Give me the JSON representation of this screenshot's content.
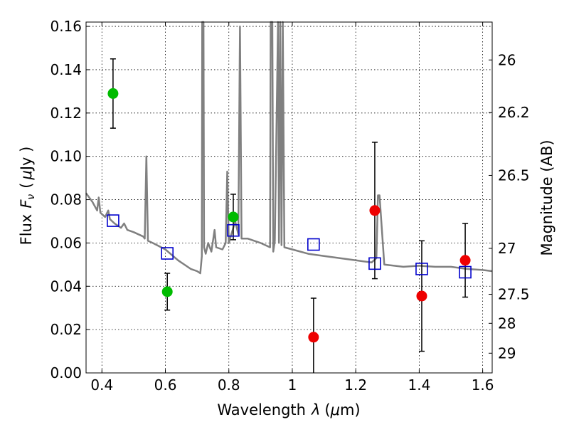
{
  "chart_data": {
    "type": "scatter",
    "xlabel_main": "Wavelength",
    "xlabel_symbol": "λ",
    "xlabel_unit_open": "(",
    "xlabel_unit_mu": "μ",
    "xlabel_unit_rest": "m)",
    "ylabel_main": "Flux",
    "ylabel_symbol": "F",
    "ylabel_sub": "ν",
    "ylabel_unit_open": "(",
    "ylabel_unit_mu": "μ",
    "ylabel_unit_rest": "Jy )",
    "y2label": "Magnitude (AB)",
    "xlim": [
      0.35,
      1.63
    ],
    "ylim": [
      0.0,
      0.162
    ],
    "xticks": [
      0.4,
      0.6,
      0.8,
      1.0,
      1.2,
      1.4,
      1.6
    ],
    "xtick_labels": [
      "0.4",
      "0.6",
      "0.8",
      "1",
      "1.2",
      "1.4",
      "1.6"
    ],
    "yticks": [
      0.0,
      0.02,
      0.04,
      0.06,
      0.08,
      0.1,
      0.12,
      0.14,
      0.16
    ],
    "ytick_labels": [
      "0.00",
      "0.02",
      "0.04",
      "0.06",
      "0.08",
      "0.10",
      "0.12",
      "0.14",
      "0.16"
    ],
    "y2ticks": [
      {
        "label": "26",
        "flux": 0.1445
      },
      {
        "label": "26.2",
        "flux": 0.1202
      },
      {
        "label": "26.5",
        "flux": 0.0912
      },
      {
        "label": "27",
        "flux": 0.0575
      },
      {
        "label": "27.5",
        "flux": 0.0363
      },
      {
        "label": "28",
        "flux": 0.0229
      },
      {
        "label": "29",
        "flux": 0.0091
      }
    ],
    "grid": true,
    "colors": {
      "green": "#00bb00",
      "red": "#ee0000",
      "blue": "#0000cc",
      "sed": "#808080"
    },
    "series": [
      {
        "name": "green-detections",
        "marker": "filled-circle",
        "color": "#00bb00",
        "points": [
          {
            "x": 0.435,
            "y": 0.129,
            "err": 0.016
          },
          {
            "x": 0.606,
            "y": 0.0375,
            "err": 0.0085
          },
          {
            "x": 0.814,
            "y": 0.072,
            "err": 0.0105
          }
        ]
      },
      {
        "name": "red-detections",
        "marker": "filled-circle",
        "color": "#ee0000",
        "points": [
          {
            "x": 1.067,
            "y": 0.0165,
            "err": 0.018
          },
          {
            "x": 1.26,
            "y": 0.075,
            "err": 0.0315
          },
          {
            "x": 1.408,
            "y": 0.0355,
            "err": 0.0255
          },
          {
            "x": 1.545,
            "y": 0.052,
            "err": 0.017
          }
        ]
      },
      {
        "name": "model-photometry",
        "marker": "open-square",
        "color": "#0000cc",
        "points": [
          {
            "x": 0.435,
            "y": 0.0703
          },
          {
            "x": 0.606,
            "y": 0.0552
          },
          {
            "x": 0.814,
            "y": 0.0658
          },
          {
            "x": 1.067,
            "y": 0.0593
          },
          {
            "x": 1.26,
            "y": 0.0505
          },
          {
            "x": 1.408,
            "y": 0.048
          },
          {
            "x": 1.545,
            "y": 0.0465
          }
        ]
      }
    ],
    "sed_line": [
      [
        0.35,
        0.083
      ],
      [
        0.37,
        0.079
      ],
      [
        0.385,
        0.075
      ],
      [
        0.39,
        0.081
      ],
      [
        0.395,
        0.074
      ],
      [
        0.41,
        0.072
      ],
      [
        0.42,
        0.075
      ],
      [
        0.425,
        0.071
      ],
      [
        0.44,
        0.069
      ],
      [
        0.46,
        0.067
      ],
      [
        0.47,
        0.069
      ],
      [
        0.48,
        0.066
      ],
      [
        0.5,
        0.065
      ],
      [
        0.53,
        0.063
      ],
      [
        0.535,
        0.062
      ],
      [
        0.54,
        0.1
      ],
      [
        0.545,
        0.061
      ],
      [
        0.56,
        0.06
      ],
      [
        0.6,
        0.057
      ],
      [
        0.64,
        0.052
      ],
      [
        0.68,
        0.048
      ],
      [
        0.7,
        0.047
      ],
      [
        0.71,
        0.046
      ],
      [
        0.715,
        0.054
      ],
      [
        0.716,
        0.162
      ],
      [
        0.72,
        0.162
      ],
      [
        0.722,
        0.058
      ],
      [
        0.727,
        0.055
      ],
      [
        0.735,
        0.06
      ],
      [
        0.745,
        0.056
      ],
      [
        0.755,
        0.066
      ],
      [
        0.76,
        0.058
      ],
      [
        0.78,
        0.057
      ],
      [
        0.79,
        0.06
      ],
      [
        0.795,
        0.093
      ],
      [
        0.8,
        0.06
      ],
      [
        0.82,
        0.07
      ],
      [
        0.83,
        0.064
      ],
      [
        0.835,
        0.16
      ],
      [
        0.84,
        0.062
      ],
      [
        0.86,
        0.062
      ],
      [
        0.9,
        0.06
      ],
      [
        0.93,
        0.058
      ],
      [
        0.932,
        0.162
      ],
      [
        0.937,
        0.162
      ],
      [
        0.94,
        0.056
      ],
      [
        0.945,
        0.061
      ],
      [
        0.955,
        0.162
      ],
      [
        0.958,
        0.06
      ],
      [
        0.962,
        0.162
      ],
      [
        0.966,
        0.059
      ],
      [
        0.97,
        0.162
      ],
      [
        0.975,
        0.058
      ],
      [
        1.0,
        0.057
      ],
      [
        1.05,
        0.055
      ],
      [
        1.1,
        0.054
      ],
      [
        1.2,
        0.052
      ],
      [
        1.25,
        0.051
      ],
      [
        1.265,
        0.053
      ],
      [
        1.27,
        0.082
      ],
      [
        1.275,
        0.082
      ],
      [
        1.29,
        0.05
      ],
      [
        1.35,
        0.049
      ],
      [
        1.4,
        0.0495
      ],
      [
        1.45,
        0.049
      ],
      [
        1.5,
        0.049
      ],
      [
        1.55,
        0.048
      ],
      [
        1.6,
        0.0475
      ],
      [
        1.63,
        0.047
      ]
    ]
  }
}
